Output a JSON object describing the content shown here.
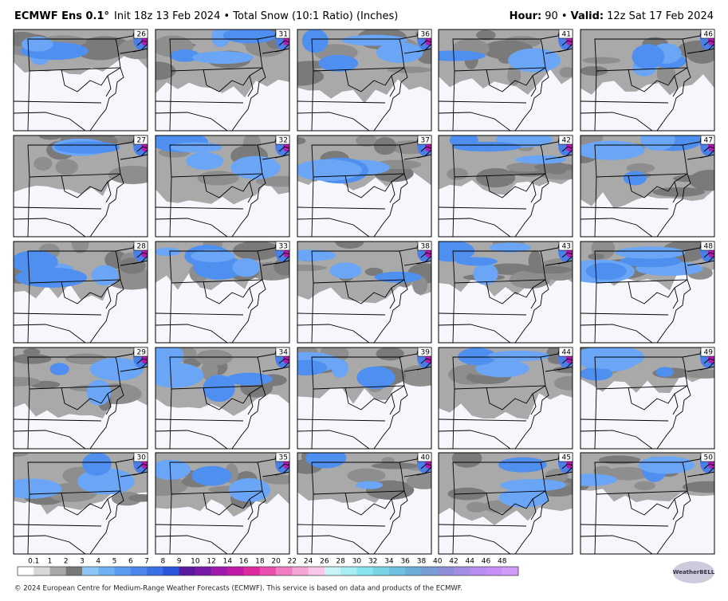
{
  "header": {
    "model": "ECMWF Ens 0.1°",
    "init": "Init 18z 13 Feb 2024 • Total Snow (10:1 Ratio) (Inches)",
    "hour_label": "Hour:",
    "hour": "90 •",
    "valid_label": "Valid:",
    "valid": "12z Sat 17 Feb 2024"
  },
  "panels": [
    26,
    27,
    28,
    29,
    30,
    31,
    32,
    33,
    34,
    35,
    36,
    37,
    38,
    39,
    40,
    41,
    42,
    43,
    44,
    45,
    46,
    47,
    48,
    49,
    50
  ],
  "colorbar": {
    "labels": [
      "0.1",
      "1",
      "2",
      "3",
      "4",
      "5",
      "6",
      "7",
      "8",
      "9",
      "10",
      "12",
      "14",
      "16",
      "18",
      "20",
      "22",
      "24",
      "26",
      "28",
      "30",
      "32",
      "34",
      "36",
      "38",
      "40",
      "42",
      "44",
      "46",
      "48"
    ]
  },
  "footer": "© 2024 European Centre for Medium-Range Weather Forecasts (ECMWF). This service is based on data and products of the ECMWF.",
  "logo": "WeatherBELL"
}
